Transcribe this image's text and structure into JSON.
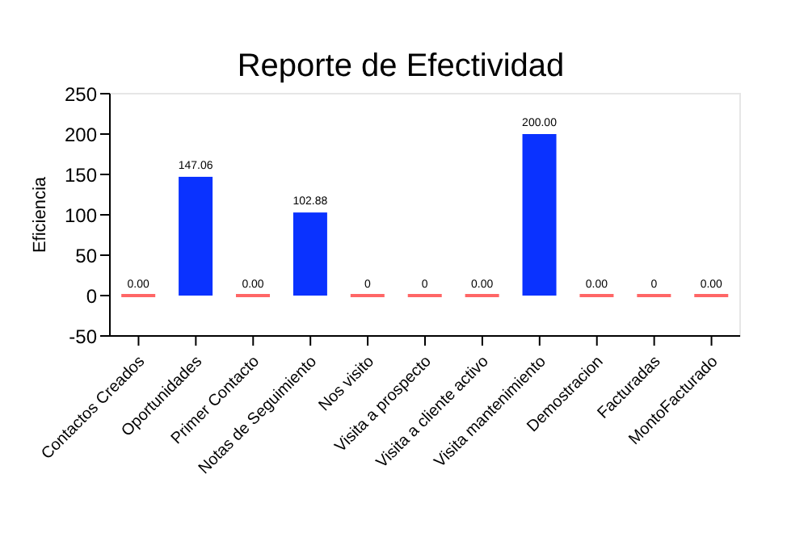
{
  "chart_data": {
    "type": "bar",
    "title": "Reporte de Efectividad",
    "ylabel": "Eficiencia",
    "categories": [
      "Contactos Creados",
      "Oportunidades",
      "Primer Contacto",
      "Notas de Seguimiento",
      "Nos visito",
      "Visita a prospecto",
      "Visita a cliente activo",
      "Visita mantenimiento",
      "Demostracion",
      "Facturadas",
      "MontoFacturado"
    ],
    "values": [
      0,
      147.06,
      0,
      102.88,
      0,
      0,
      0,
      200,
      0,
      0,
      0
    ],
    "value_labels": [
      "0.00",
      "147.06",
      "0.00",
      "102.88",
      "0",
      "0",
      "0.00",
      "200.00",
      "0.00",
      "0",
      "0.00"
    ],
    "colors": [
      "#ff6666",
      "#0a32ff",
      "#ff6666",
      "#0a32ff",
      "#ff6666",
      "#ff6666",
      "#ff6666",
      "#0a32ff",
      "#ff6666",
      "#ff6666",
      "#ff6666"
    ],
    "ylim": [
      -50,
      250
    ],
    "yticks": [
      -50,
      0,
      50,
      100,
      150,
      200,
      250
    ],
    "grid": false,
    "legend": false
  }
}
